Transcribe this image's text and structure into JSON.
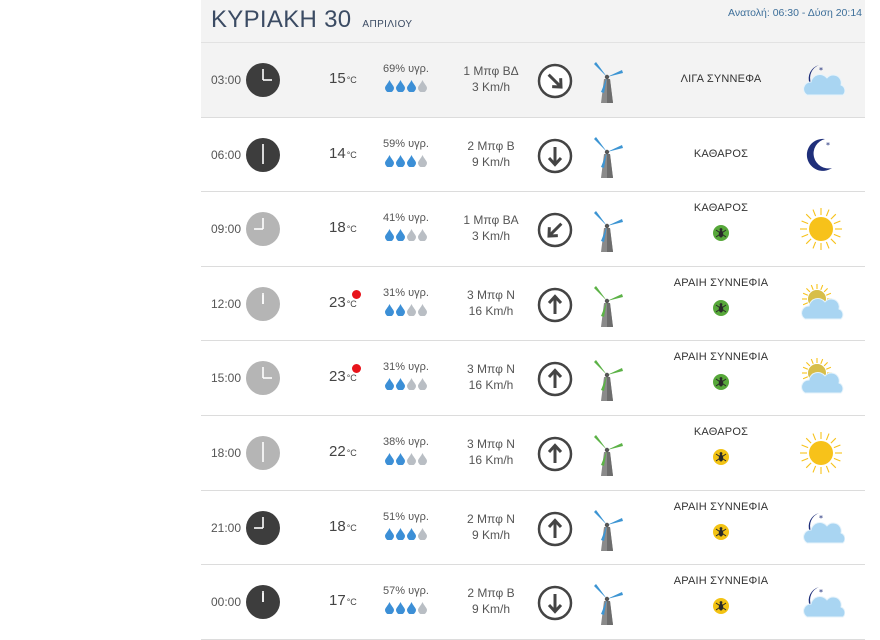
{
  "header": {
    "day": "ΚΥΡΙΑΚΗ 30",
    "month": "ΑΠΡΙΛΙΟΥ",
    "sun_times": "Ανατολή: 06:30 - Δύση 20:14"
  },
  "rows": [
    {
      "time": "03:00",
      "clock": "dark",
      "hour": 3,
      "temp": "15",
      "temp_unit": "°C",
      "heat": false,
      "humidity": "69% υγρ.",
      "drops": 3,
      "wind": "1 Μπφ ΒΔ",
      "speed": "3 Km/h",
      "dir_icon": "arrow-down-right-icon",
      "arrow_rot": 135,
      "turbine": "blue",
      "condition": "ΛΙΓΑ ΣΥΝΝΕΦΑ",
      "bug": "none",
      "weather_icon": "moon-cloud-icon"
    },
    {
      "time": "06:00",
      "clock": "dark",
      "hour": 6,
      "temp": "14",
      "temp_unit": "°C",
      "heat": false,
      "humidity": "59% υγρ.",
      "drops": 3,
      "wind": "2 Μπφ Β",
      "speed": "9 Km/h",
      "dir_icon": "arrow-down-icon",
      "arrow_rot": 180,
      "turbine": "blue",
      "condition": "ΚΑΘΑΡΟΣ",
      "bug": "none",
      "weather_icon": "moon-icon"
    },
    {
      "time": "09:00",
      "clock": "light",
      "hour": 9,
      "temp": "18",
      "temp_unit": "°C",
      "heat": false,
      "humidity": "41% υγρ.",
      "drops": 2,
      "wind": "1 Μπφ ΒΑ",
      "speed": "3 Km/h",
      "dir_icon": "arrow-down-left-icon",
      "arrow_rot": 225,
      "turbine": "blue",
      "condition": "ΚΑΘΑΡΟΣ",
      "bug": "green",
      "weather_icon": "sun-icon"
    },
    {
      "time": "12:00",
      "clock": "light",
      "hour": 12,
      "temp": "23",
      "temp_unit": "°C",
      "heat": true,
      "humidity": "31% υγρ.",
      "drops": 2,
      "wind": "3 Μπφ Ν",
      "speed": "16 Km/h",
      "dir_icon": "arrow-up-icon",
      "arrow_rot": 0,
      "turbine": "green",
      "condition": "ΑΡΑΙΗ ΣΥΝΝΕΦΙΑ",
      "bug": "green",
      "weather_icon": "sun-cloud-icon"
    },
    {
      "time": "15:00",
      "clock": "light",
      "hour": 3,
      "temp": "23",
      "temp_unit": "°C",
      "heat": true,
      "humidity": "31% υγρ.",
      "drops": 2,
      "wind": "3 Μπφ Ν",
      "speed": "16 Km/h",
      "dir_icon": "arrow-up-icon",
      "arrow_rot": 0,
      "turbine": "green",
      "condition": "ΑΡΑΙΗ ΣΥΝΝΕΦΙΑ",
      "bug": "green",
      "weather_icon": "sun-cloud-icon"
    },
    {
      "time": "18:00",
      "clock": "light",
      "hour": 6,
      "temp": "22",
      "temp_unit": "°C",
      "heat": false,
      "humidity": "38% υγρ.",
      "drops": 2,
      "wind": "3 Μπφ Ν",
      "speed": "16 Km/h",
      "dir_icon": "arrow-up-icon",
      "arrow_rot": 0,
      "turbine": "green",
      "condition": "ΚΑΘΑΡΟΣ",
      "bug": "yellow",
      "weather_icon": "sun-icon"
    },
    {
      "time": "21:00",
      "clock": "dark",
      "hour": 9,
      "temp": "18",
      "temp_unit": "°C",
      "heat": false,
      "humidity": "51% υγρ.",
      "drops": 3,
      "wind": "2 Μπφ Ν",
      "speed": "9 Km/h",
      "dir_icon": "arrow-up-icon",
      "arrow_rot": 0,
      "turbine": "blue",
      "condition": "ΑΡΑΙΗ ΣΥΝΝΕΦΙΑ",
      "bug": "yellow",
      "weather_icon": "moon-cloud-icon"
    },
    {
      "time": "00:00",
      "clock": "dark",
      "hour": 12,
      "temp": "17",
      "temp_unit": "°C",
      "heat": false,
      "humidity": "57% υγρ.",
      "drops": 3,
      "wind": "2 Μπφ Β",
      "speed": "9 Km/h",
      "dir_icon": "arrow-down-icon",
      "arrow_rot": 180,
      "turbine": "blue",
      "condition": "ΑΡΑΙΗ ΣΥΝΝΕΦΙΑ",
      "bug": "yellow",
      "weather_icon": "moon-cloud-icon"
    }
  ],
  "colors": {
    "title": "#3b4b63",
    "sun_times": "#3d6f9a",
    "clock_dark": "#3d3d3d",
    "clock_light": "#b5b5b5",
    "drop_filled": "#3c8fd6",
    "drop_empty": "#b9bec4",
    "turbine_blue": "#3d95d3",
    "turbine_green": "#5cb247",
    "heat_dot": "#e8141b",
    "sun": "#f7c21a",
    "moon": "#1f2f7a",
    "cloud": "#a9d5f2"
  }
}
